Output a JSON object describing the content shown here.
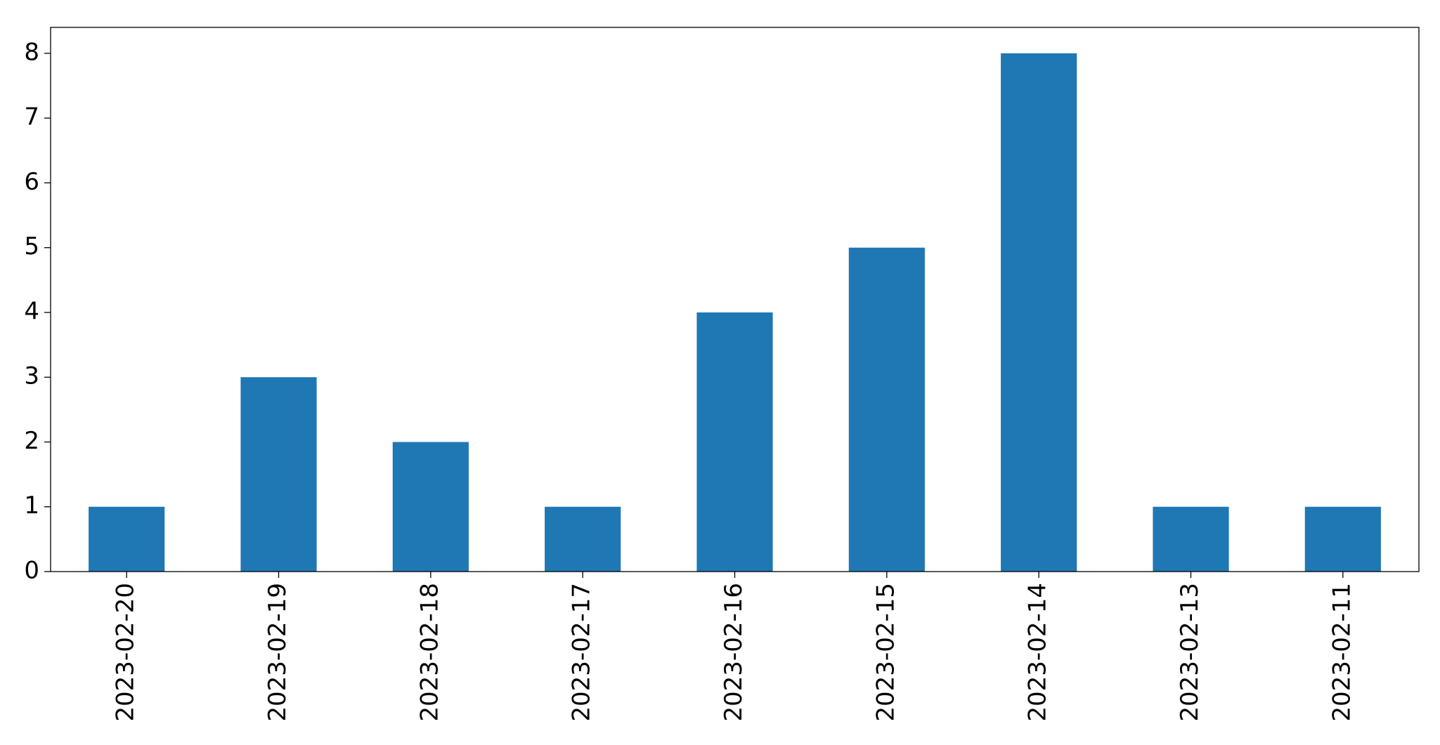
{
  "chart_data": {
    "type": "bar",
    "categories": [
      "2023-02-20",
      "2023-02-19",
      "2023-02-18",
      "2023-02-17",
      "2023-02-16",
      "2023-02-15",
      "2023-02-14",
      "2023-02-13",
      "2023-02-11"
    ],
    "values": [
      1,
      3,
      2,
      1,
      4,
      5,
      8,
      1,
      1
    ],
    "color": "#1f77b4",
    "ylim": [
      0,
      8.4
    ],
    "yticks": [
      0,
      1,
      2,
      3,
      4,
      5,
      6,
      7,
      8
    ],
    "grid": false
  }
}
